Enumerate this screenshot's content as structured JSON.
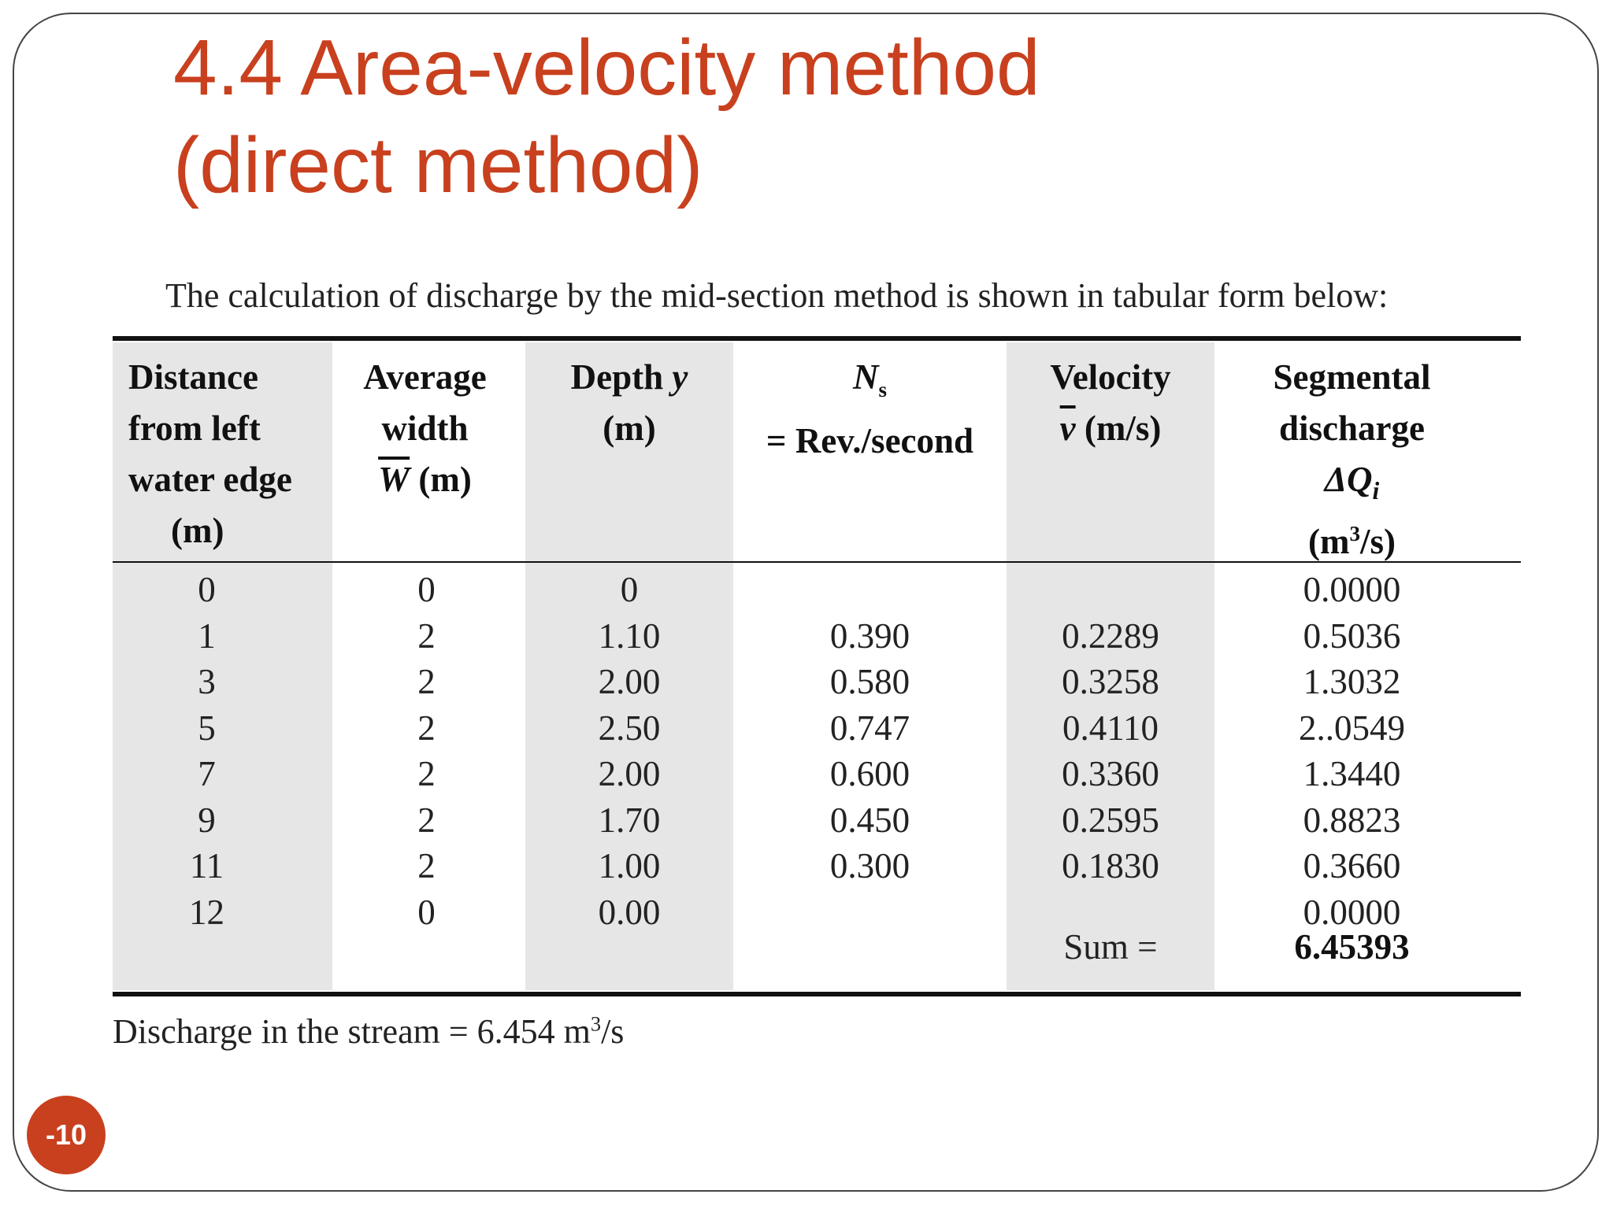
{
  "slide": {
    "title_line1": "4.4 Area-velocity method",
    "title_line2": "(direct method)",
    "page_number": "-10",
    "accent_color": "#c8401e"
  },
  "table": {
    "caption": "The calculation of discharge by the mid-section method is shown in tabular form below:",
    "headers": {
      "distance": [
        "Distance",
        "from left",
        "water edge",
        "(m)"
      ],
      "width": [
        "Average",
        "width",
        "W",
        "(m)"
      ],
      "depth": [
        "Depth",
        "y",
        "(m)"
      ],
      "ns": [
        "N",
        "s",
        "= Rev./second"
      ],
      "velocity": [
        "Velocity",
        "v",
        "(m/s)"
      ],
      "discharge": [
        "Segmental",
        "discharge",
        "ΔQ",
        "i",
        "(m",
        "3",
        "/s)"
      ]
    },
    "columns": {
      "distance": [
        "0",
        "1",
        "3",
        "5",
        "7",
        "9",
        "11",
        "12"
      ],
      "width": [
        "0",
        "2",
        "2",
        "2",
        "2",
        "2",
        "2",
        "0"
      ],
      "depth": [
        "0",
        "1.10",
        "2.00",
        "2.50",
        "2.00",
        "1.70",
        "1.00",
        "0.00"
      ],
      "ns": [
        "",
        "0.390",
        "0.580",
        "0.747",
        "0.600",
        "0.450",
        "0.300",
        ""
      ],
      "velocity": [
        "",
        "0.2289",
        "0.3258",
        "0.4110",
        "0.3360",
        "0.2595",
        "0.1830",
        ""
      ],
      "discharge": [
        "0.0000",
        "0.5036",
        "1.3032",
        "2..0549",
        "1.3440",
        "0.8823",
        "0.3660",
        "0.0000"
      ]
    },
    "sum_label": "Sum =",
    "sum_value": "6.45393"
  },
  "footnote": {
    "text": "Discharge in the stream = 6.454 m",
    "sup": "3",
    "unit_tail": "/s"
  }
}
